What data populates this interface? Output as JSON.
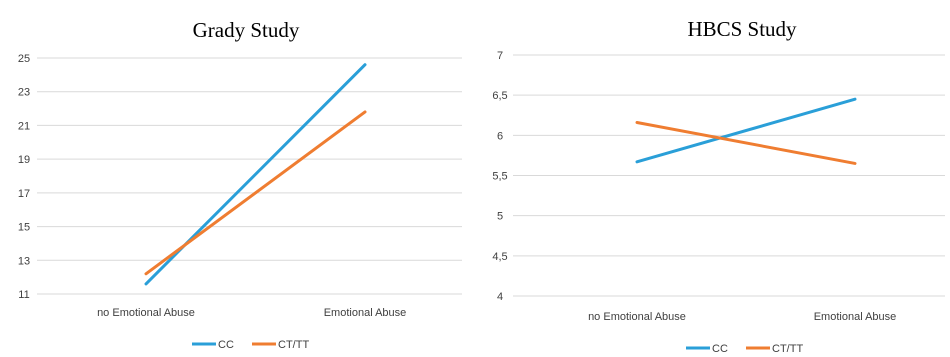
{
  "chart_data": [
    {
      "type": "line",
      "title": "Grady Study",
      "categories": [
        "no Emotional Abuse",
        "Emotional Abuse"
      ],
      "series": [
        {
          "name": "CC",
          "values": [
            11.6,
            24.6
          ],
          "color": "#2a9fd8"
        },
        {
          "name": "CT/TT",
          "values": [
            12.2,
            21.8
          ],
          "color": "#ef7d31"
        }
      ],
      "yticks": [
        "11",
        "13",
        "15",
        "17",
        "19",
        "21",
        "23",
        "25"
      ],
      "ylim": [
        11,
        25
      ],
      "grid": true,
      "legend_position": "bottom"
    },
    {
      "type": "line",
      "title": "HBCS Study",
      "categories": [
        "no Emotional Abuse",
        "Emotional Abuse"
      ],
      "series": [
        {
          "name": "CC",
          "values": [
            5.67,
            6.45
          ],
          "color": "#2a9fd8"
        },
        {
          "name": "CT/TT",
          "values": [
            6.16,
            5.65
          ],
          "color": "#ef7d31"
        }
      ],
      "yticks": [
        "4",
        "4,5",
        "5",
        "5,5",
        "6",
        "6,5",
        "7"
      ],
      "ylim": [
        4,
        7
      ],
      "grid": true,
      "legend_position": "bottom"
    }
  ]
}
